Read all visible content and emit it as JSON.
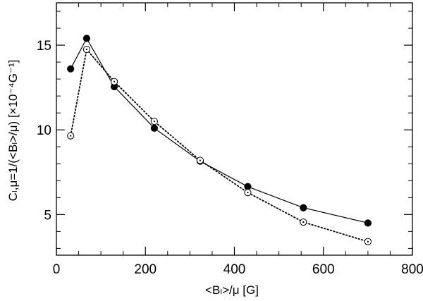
{
  "chart_data": {
    "type": "line",
    "xlabel": "<Bₗ>/μ [G]",
    "ylabel": "Cₗ,μ=1/(<Bₗ>/μ) [×10⁻⁴G⁻¹]",
    "xlim": [
      0,
      800
    ],
    "ylim": [
      2.6,
      17.5
    ],
    "x_ticks": [
      0,
      200,
      400,
      600,
      800
    ],
    "y_ticks": [
      5,
      10,
      15
    ],
    "grid": false,
    "series": [
      {
        "style": "solid",
        "marker": "filled-circle",
        "color": "#000000",
        "x": [
          32,
          68,
          130,
          220,
          323,
          430,
          555,
          700
        ],
        "y": [
          13.6,
          15.4,
          12.55,
          10.1,
          8.15,
          6.65,
          5.4,
          4.5
        ]
      },
      {
        "style": "dotted",
        "marker": "open-circle-dot",
        "color": "#000000",
        "x": [
          32,
          68,
          130,
          220,
          323,
          430,
          555,
          700
        ],
        "y": [
          9.65,
          14.75,
          12.85,
          10.5,
          8.2,
          6.3,
          4.55,
          3.4
        ]
      }
    ]
  }
}
